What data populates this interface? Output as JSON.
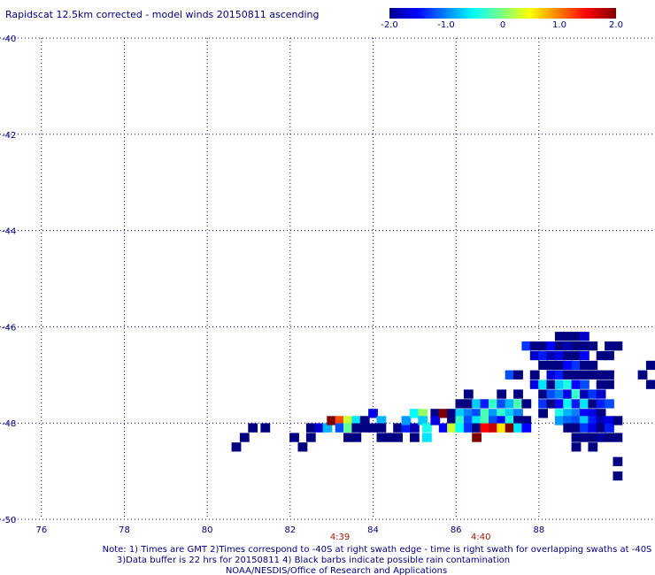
{
  "chart_data": {
    "type": "heatmap",
    "title": "Rapidscat 12.5km corrected - model winds 20150811 ascending",
    "x_ticks": [
      "76",
      "78",
      "80",
      "82",
      "84",
      "86",
      "88"
    ],
    "x_tick_values": [
      76,
      78,
      80,
      82,
      84,
      86,
      88
    ],
    "y_ticks": [
      "-40",
      "-42",
      "-44",
      "-46",
      "-48",
      "-50"
    ],
    "y_tick_values": [
      -40,
      -42,
      -44,
      -46,
      -48,
      -50
    ],
    "xlim": [
      75.0,
      90.8
    ],
    "ylim": [
      -50,
      -40
    ],
    "grid": true,
    "colorbar": {
      "min": -2.0,
      "max": 2.0,
      "tick_labels": [
        "-2.0",
        "-1.0",
        "0",
        "1.0",
        "2.0"
      ],
      "tick_values": [
        -2.0,
        -1.0,
        0,
        1.0,
        2.0
      ],
      "placement": "top-right"
    },
    "time_labels": [
      {
        "text": "4:39",
        "x": 83.2
      },
      {
        "text": "4:40",
        "x": 86.6
      }
    ],
    "cell_size": [
      0.23,
      0.19
    ],
    "cells": [
      [
        81.1,
        -48.1,
        -2.0
      ],
      [
        81.4,
        -48.1,
        -2.0
      ],
      [
        80.9,
        -48.3,
        -2.0
      ],
      [
        80.7,
        -48.5,
        -2.0
      ],
      [
        82.1,
        -48.3,
        -2.0
      ],
      [
        82.3,
        -48.5,
        -2.0
      ],
      [
        82.5,
        -48.1,
        -2.0
      ],
      [
        82.5,
        -48.3,
        -2.0
      ],
      [
        82.7,
        -48.1,
        -1.7
      ],
      [
        82.9,
        -48.1,
        -0.8
      ],
      [
        83.0,
        -47.95,
        2.0
      ],
      [
        83.2,
        -47.95,
        1.2
      ],
      [
        83.4,
        -47.95,
        0.3
      ],
      [
        83.2,
        -48.1,
        -1.2
      ],
      [
        83.4,
        -48.1,
        -0.1
      ],
      [
        83.6,
        -47.95,
        -0.6
      ],
      [
        83.6,
        -48.1,
        -2.0
      ],
      [
        83.4,
        -48.3,
        -2.0
      ],
      [
        83.6,
        -48.3,
        -2.0
      ],
      [
        83.8,
        -48.1,
        -2.0
      ],
      [
        83.8,
        -47.95,
        -2.0
      ],
      [
        84.0,
        -48.1,
        -2.0
      ],
      [
        84.0,
        -47.8,
        -1.6
      ],
      [
        84.2,
        -47.95,
        -0.8
      ],
      [
        84.2,
        -48.1,
        -2.0
      ],
      [
        84.2,
        -48.3,
        -2.0
      ],
      [
        84.4,
        -48.3,
        -2.0
      ],
      [
        84.6,
        -48.1,
        -2.0
      ],
      [
        84.6,
        -48.3,
        -2.0
      ],
      [
        84.8,
        -48.1,
        -1.4
      ],
      [
        84.8,
        -47.95,
        -0.9
      ],
      [
        85.0,
        -48.1,
        -1.8
      ],
      [
        85.0,
        -48.3,
        -2.0
      ],
      [
        85.0,
        -47.8,
        -0.5
      ],
      [
        85.2,
        -47.8,
        0.1
      ],
      [
        85.2,
        -47.95,
        -0.7
      ],
      [
        85.3,
        -48.1,
        -0.4
      ],
      [
        85.3,
        -48.3,
        -0.6
      ],
      [
        85.5,
        -47.8,
        -2.0
      ],
      [
        85.5,
        -47.95,
        -1.6
      ],
      [
        85.7,
        -47.8,
        2.0
      ],
      [
        85.7,
        -48.1,
        -1.5
      ],
      [
        85.9,
        -47.8,
        -2.0
      ],
      [
        85.9,
        -47.95,
        -2.0
      ],
      [
        85.9,
        -48.1,
        0.3
      ],
      [
        86.1,
        -47.6,
        -2.0
      ],
      [
        86.1,
        -47.8,
        -0.7
      ],
      [
        86.1,
        -47.95,
        -0.3
      ],
      [
        86.1,
        -48.1,
        -0.5
      ],
      [
        86.3,
        -47.6,
        -2.0
      ],
      [
        86.3,
        -47.4,
        -2.0
      ],
      [
        86.3,
        -47.8,
        -1.0
      ],
      [
        86.3,
        -47.95,
        -1.2
      ],
      [
        86.3,
        -48.1,
        -1.3
      ],
      [
        86.5,
        -47.6,
        -0.7
      ],
      [
        86.5,
        -47.8,
        -1.2
      ],
      [
        86.5,
        -47.95,
        -0.6
      ],
      [
        86.5,
        -48.1,
        -2.0
      ],
      [
        86.5,
        -48.3,
        2.0
      ],
      [
        86.7,
        -47.6,
        -1.4
      ],
      [
        86.7,
        -47.8,
        -0.2
      ],
      [
        86.7,
        -47.95,
        -0.2
      ],
      [
        86.7,
        -48.1,
        1.5
      ],
      [
        86.9,
        -47.6,
        -0.3
      ],
      [
        86.9,
        -47.8,
        -0.9
      ],
      [
        86.9,
        -47.95,
        -1.2
      ],
      [
        86.9,
        -48.1,
        1.7
      ],
      [
        87.1,
        -47.4,
        -2.0
      ],
      [
        87.1,
        -47.6,
        -1.2
      ],
      [
        87.1,
        -47.8,
        -0.3
      ],
      [
        87.1,
        -47.95,
        -1.5
      ],
      [
        87.1,
        -48.1,
        0.6
      ],
      [
        87.3,
        -47.6,
        -0.8
      ],
      [
        87.3,
        -47.8,
        -0.7
      ],
      [
        87.3,
        -47.95,
        -0.4
      ],
      [
        87.3,
        -48.1,
        2.0
      ],
      [
        87.5,
        -47.4,
        -2.0
      ],
      [
        87.5,
        -47.6,
        -0.2
      ],
      [
        87.5,
        -47.8,
        -1.0
      ],
      [
        87.5,
        -47.95,
        -2.0
      ],
      [
        87.5,
        -48.1,
        -0.6
      ],
      [
        87.7,
        -47.6,
        -2.0
      ],
      [
        87.7,
        -47.95,
        -2.0
      ],
      [
        87.7,
        -48.1,
        -1.5
      ],
      [
        87.3,
        -47.0,
        -1.2
      ],
      [
        87.5,
        -47.0,
        -2.0
      ],
      [
        87.7,
        -46.4,
        -1.3
      ],
      [
        87.9,
        -46.4,
        -2.0
      ],
      [
        87.9,
        -46.6,
        -1.7
      ],
      [
        87.9,
        -47.0,
        -2.0
      ],
      [
        87.9,
        -47.2,
        -1.6
      ],
      [
        88.1,
        -46.4,
        -2.0
      ],
      [
        88.1,
        -46.6,
        -1.4
      ],
      [
        88.1,
        -46.8,
        -2.0
      ],
      [
        88.1,
        -47.2,
        -0.6
      ],
      [
        88.1,
        -47.4,
        -2.0
      ],
      [
        88.1,
        -47.6,
        -1.3
      ],
      [
        88.1,
        -47.8,
        -2.0
      ],
      [
        88.3,
        -46.4,
        -1.5
      ],
      [
        88.3,
        -46.6,
        -1.8
      ],
      [
        88.3,
        -46.8,
        -2.0
      ],
      [
        88.3,
        -47.0,
        -1.7
      ],
      [
        88.3,
        -47.2,
        -2.0
      ],
      [
        88.3,
        -47.4,
        -1.2
      ],
      [
        88.3,
        -47.6,
        -2.0
      ],
      [
        88.5,
        -46.2,
        -2.0
      ],
      [
        88.5,
        -46.4,
        -2.0
      ],
      [
        88.5,
        -46.6,
        -1.6
      ],
      [
        88.5,
        -46.8,
        -2.0
      ],
      [
        88.5,
        -47.0,
        -1.4
      ],
      [
        88.5,
        -47.2,
        -0.7
      ],
      [
        88.5,
        -47.4,
        -1.0
      ],
      [
        88.5,
        -47.6,
        -1.5
      ],
      [
        88.5,
        -47.8,
        -0.4
      ],
      [
        88.5,
        -47.95,
        -0.9
      ],
      [
        88.7,
        -46.2,
        -2.0
      ],
      [
        88.7,
        -46.4,
        -1.8
      ],
      [
        88.7,
        -46.6,
        -2.0
      ],
      [
        88.7,
        -46.8,
        -1.5
      ],
      [
        88.7,
        -47.0,
        -2.0
      ],
      [
        88.7,
        -47.2,
        -0.4
      ],
      [
        88.7,
        -47.4,
        -1.6
      ],
      [
        88.7,
        -47.6,
        -0.5
      ],
      [
        88.7,
        -47.8,
        -0.8
      ],
      [
        88.7,
        -47.95,
        -1.1
      ],
      [
        88.7,
        -48.1,
        -2.0
      ],
      [
        88.9,
        -46.2,
        -2.0
      ],
      [
        88.9,
        -46.4,
        -2.0
      ],
      [
        88.9,
        -46.6,
        -2.0
      ],
      [
        88.9,
        -46.8,
        -1.3
      ],
      [
        88.9,
        -47.0,
        -2.0
      ],
      [
        88.9,
        -47.2,
        -1.5
      ],
      [
        88.9,
        -47.4,
        -0.3
      ],
      [
        88.9,
        -47.6,
        -1.4
      ],
      [
        88.9,
        -47.8,
        -1.0
      ],
      [
        88.9,
        -47.95,
        -1.2
      ],
      [
        88.9,
        -48.1,
        -2.0
      ],
      [
        88.9,
        -48.3,
        -2.0
      ],
      [
        88.9,
        -48.5,
        -2.0
      ],
      [
        89.1,
        -46.2,
        -1.7
      ],
      [
        89.1,
        -46.4,
        -2.0
      ],
      [
        89.1,
        -46.6,
        -1.5
      ],
      [
        89.1,
        -46.8,
        -2.0
      ],
      [
        89.1,
        -47.0,
        -2.0
      ],
      [
        89.1,
        -47.2,
        -1.2
      ],
      [
        89.1,
        -47.4,
        -1.8
      ],
      [
        89.1,
        -47.6,
        -0.6
      ],
      [
        89.1,
        -47.8,
        -1.5
      ],
      [
        89.1,
        -47.95,
        -0.7
      ],
      [
        89.1,
        -48.1,
        -1.3
      ],
      [
        89.1,
        -48.3,
        -2.0
      ],
      [
        89.3,
        -46.4,
        -2.0
      ],
      [
        89.3,
        -46.8,
        -2.0
      ],
      [
        89.3,
        -47.0,
        -2.0
      ],
      [
        89.3,
        -47.4,
        -1.3
      ],
      [
        89.3,
        -47.6,
        -2.0
      ],
      [
        89.3,
        -47.8,
        -1.6
      ],
      [
        89.3,
        -47.95,
        -1.4
      ],
      [
        89.3,
        -48.1,
        -1.6
      ],
      [
        89.3,
        -48.3,
        -2.0
      ],
      [
        89.5,
        -46.6,
        -2.0
      ],
      [
        89.5,
        -47.0,
        -2.0
      ],
      [
        89.5,
        -47.2,
        -2.0
      ],
      [
        89.5,
        -47.4,
        -1.7
      ],
      [
        89.5,
        -47.6,
        -1.4
      ],
      [
        89.5,
        -47.8,
        -2.0
      ],
      [
        89.5,
        -47.95,
        -1.8
      ],
      [
        89.5,
        -48.1,
        -2.0
      ],
      [
        89.5,
        -48.3,
        -1.9
      ],
      [
        89.7,
        -46.4,
        -2.0
      ],
      [
        89.7,
        -46.6,
        -2.0
      ],
      [
        89.7,
        -47.0,
        -2.0
      ],
      [
        89.7,
        -47.2,
        -2.0
      ],
      [
        89.7,
        -47.6,
        -1.2
      ],
      [
        89.7,
        -47.95,
        -1.6
      ],
      [
        89.7,
        -48.1,
        -1.4
      ],
      [
        89.7,
        -48.3,
        -2.0
      ],
      [
        89.9,
        -46.4,
        -2.0
      ],
      [
        89.9,
        -47.95,
        -2.0
      ],
      [
        89.9,
        -48.3,
        -2.0
      ],
      [
        89.3,
        -48.5,
        -2.0
      ],
      [
        89.9,
        -48.8,
        -2.0
      ],
      [
        89.9,
        -49.1,
        -2.0
      ],
      [
        90.5,
        -47.0,
        -2.0
      ],
      [
        90.7,
        -46.8,
        -2.0
      ],
      [
        90.7,
        -47.2,
        -2.0
      ]
    ]
  },
  "notes": [
    "Note: 1) Times are GMT 2)Times correspond to -40S at right swath edge - time is right swath for overlapping swaths at -40S",
    "3)Data buffer is 22 hrs for 20150811 4) Black barbs indicate possible rain contamination",
    "NOAA/NESDIS/Office of Research and Applications"
  ]
}
